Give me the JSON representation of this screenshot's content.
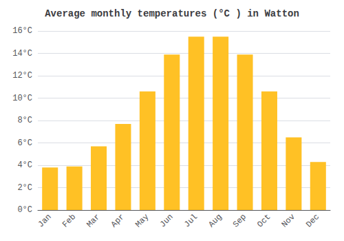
{
  "chart_data": {
    "type": "bar",
    "title": "Average monthly temperatures (°C ) in Watton",
    "categories": [
      "Jan",
      "Feb",
      "Mar",
      "Apr",
      "May",
      "Jun",
      "Jul",
      "Aug",
      "Sep",
      "Oct",
      "Nov",
      "Dec"
    ],
    "values": [
      3.8,
      3.9,
      5.7,
      7.7,
      10.6,
      13.9,
      15.5,
      15.5,
      13.9,
      10.6,
      6.5,
      4.3
    ],
    "color": "#FFC125",
    "ylim": [
      0,
      16
    ],
    "yticks": [
      {
        "value": 0,
        "label": "0°C"
      },
      {
        "value": 2,
        "label": "2°C"
      },
      {
        "value": 4,
        "label": "4°C"
      },
      {
        "value": 6,
        "label": "6°C"
      },
      {
        "value": 8,
        "label": "8°C"
      },
      {
        "value": 10,
        "label": "10°C"
      },
      {
        "value": 12,
        "label": "12°C"
      },
      {
        "value": 14,
        "label": "14°C"
      },
      {
        "value": 16,
        "label": "16°C"
      }
    ],
    "grid": true
  }
}
